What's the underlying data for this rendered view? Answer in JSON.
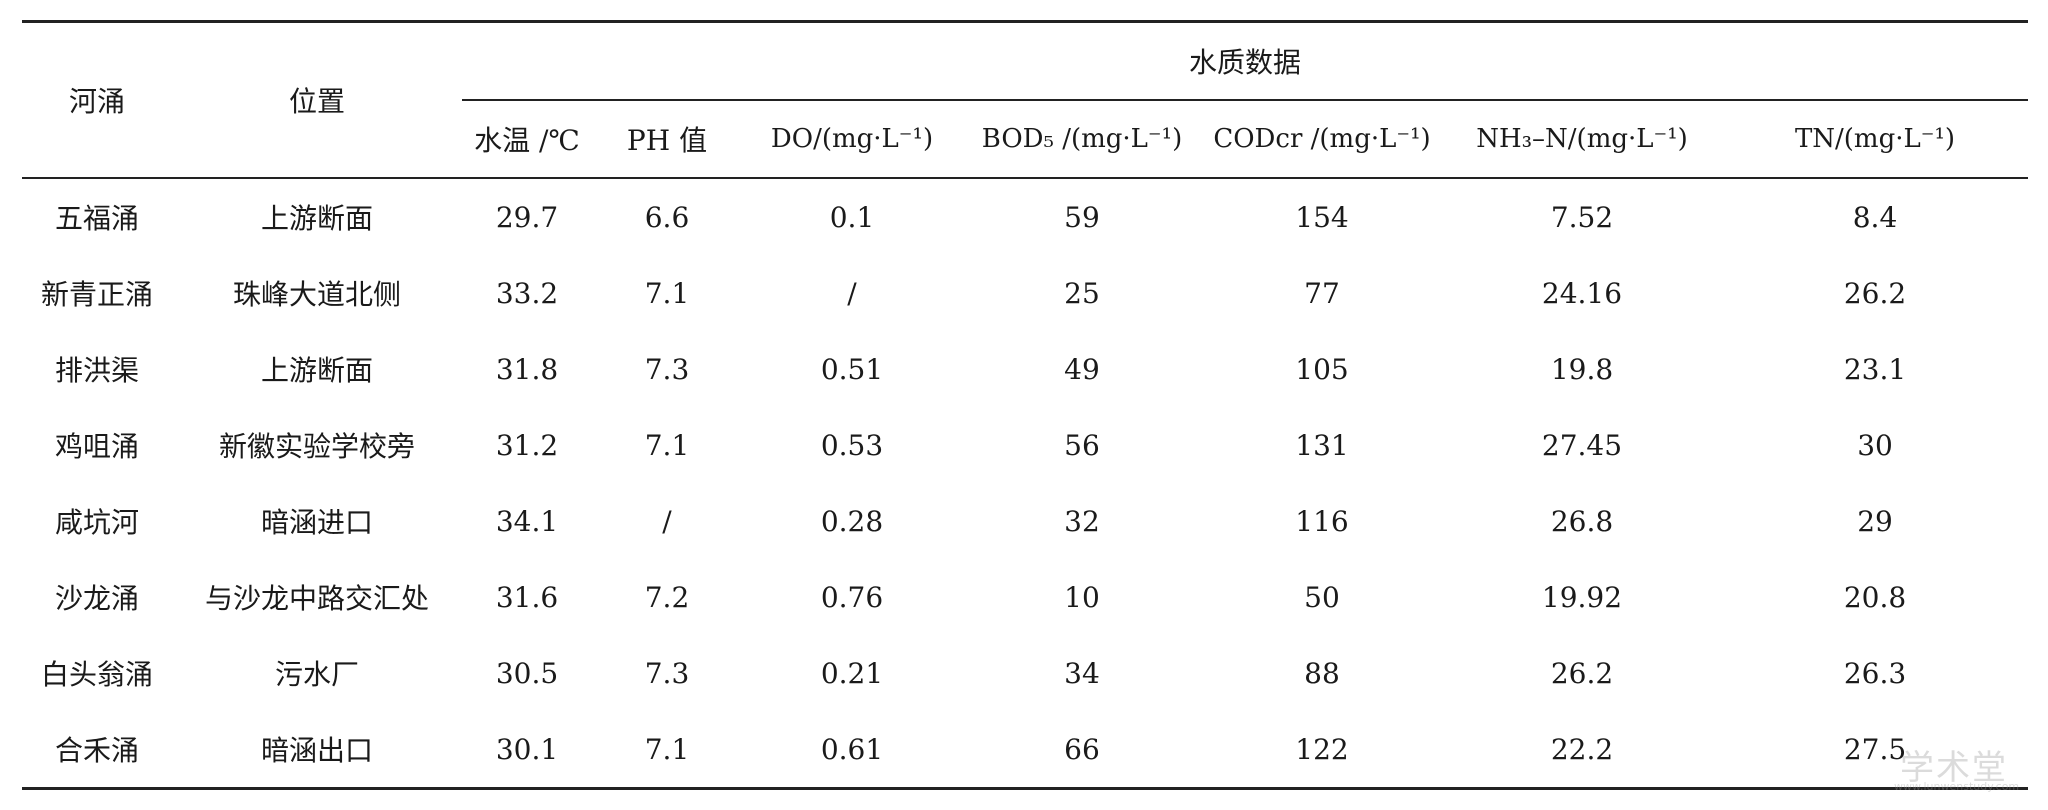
{
  "table": {
    "group_header": "水质数据",
    "headers": {
      "river": "河涌",
      "location": "位置",
      "temp": "水温 /℃",
      "ph": "PH 值",
      "do": "DO/(mg·L⁻¹)",
      "bod": "BOD₅ /(mg·L⁻¹)",
      "cod": "CODcr /(mg·L⁻¹)",
      "nh3": "NH₃–N/(mg·L⁻¹)",
      "tn": "TN/(mg·L⁻¹)"
    },
    "rows": [
      {
        "river": "五福涌",
        "location": "上游断面",
        "temp": "29.7",
        "ph": "6.6",
        "do": "0.1",
        "bod": "59",
        "cod": "154",
        "nh3": "7.52",
        "tn": "8.4"
      },
      {
        "river": "新青正涌",
        "location": "珠峰大道北侧",
        "temp": "33.2",
        "ph": "7.1",
        "do": "/",
        "bod": "25",
        "cod": "77",
        "nh3": "24.16",
        "tn": "26.2"
      },
      {
        "river": "排洪渠",
        "location": "上游断面",
        "temp": "31.8",
        "ph": "7.3",
        "do": "0.51",
        "bod": "49",
        "cod": "105",
        "nh3": "19.8",
        "tn": "23.1"
      },
      {
        "river": "鸡咀涌",
        "location": "新徽实验学校旁",
        "temp": "31.2",
        "ph": "7.1",
        "do": "0.53",
        "bod": "56",
        "cod": "131",
        "nh3": "27.45",
        "tn": "30"
      },
      {
        "river": "咸坑河",
        "location": "暗涵进口",
        "temp": "34.1",
        "ph": "/",
        "do": "0.28",
        "bod": "32",
        "cod": "116",
        "nh3": "26.8",
        "tn": "29"
      },
      {
        "river": "沙龙涌",
        "location": "与沙龙中路交汇处",
        "temp": "31.6",
        "ph": "7.2",
        "do": "0.76",
        "bod": "10",
        "cod": "50",
        "nh3": "19.92",
        "tn": "20.8"
      },
      {
        "river": "白头翁涌",
        "location": "污水厂",
        "temp": "30.5",
        "ph": "7.3",
        "do": "0.21",
        "bod": "34",
        "cod": "88",
        "nh3": "26.2",
        "tn": "26.3"
      },
      {
        "river": "合禾涌",
        "location": "暗涵出口",
        "temp": "30.1",
        "ph": "7.1",
        "do": "0.61",
        "bod": "66",
        "cod": "122",
        "nh3": "22.2",
        "tn": "27.5"
      }
    ]
  },
  "watermark": {
    "text": "学术堂",
    "sub": "www.lunwenstudy.com"
  }
}
